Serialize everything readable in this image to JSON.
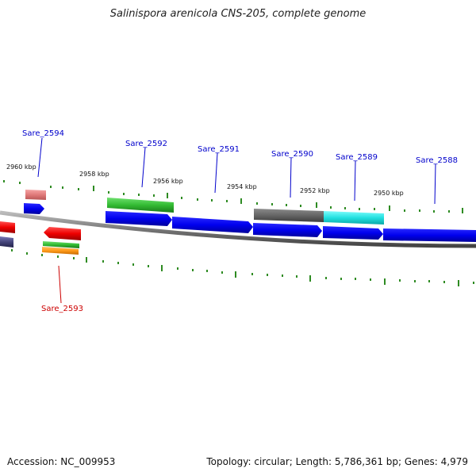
{
  "title": "Salinispora arenicola CNS-205, complete genome",
  "footer": {
    "accession": "Accession: NC_009953",
    "summary": "Topology: circular; Length: 5,786,361 bp; Genes: 4,979"
  },
  "scale_labels": [
    "2960 kbp",
    "2958 kbp",
    "2956 kbp",
    "2954 kbp",
    "2952 kbp",
    "2950 kbp"
  ],
  "gene_labels": [
    "Sare_2594",
    "Sare_2592",
    "Sare_2591",
    "Sare_2590",
    "Sare_2589",
    "Sare_2588",
    "Sare_2593"
  ],
  "colors": {
    "forward_label": "#0000cc",
    "reverse_label": "#cc0000",
    "tick": "#2e8b22",
    "backbone": "#777777"
  }
}
